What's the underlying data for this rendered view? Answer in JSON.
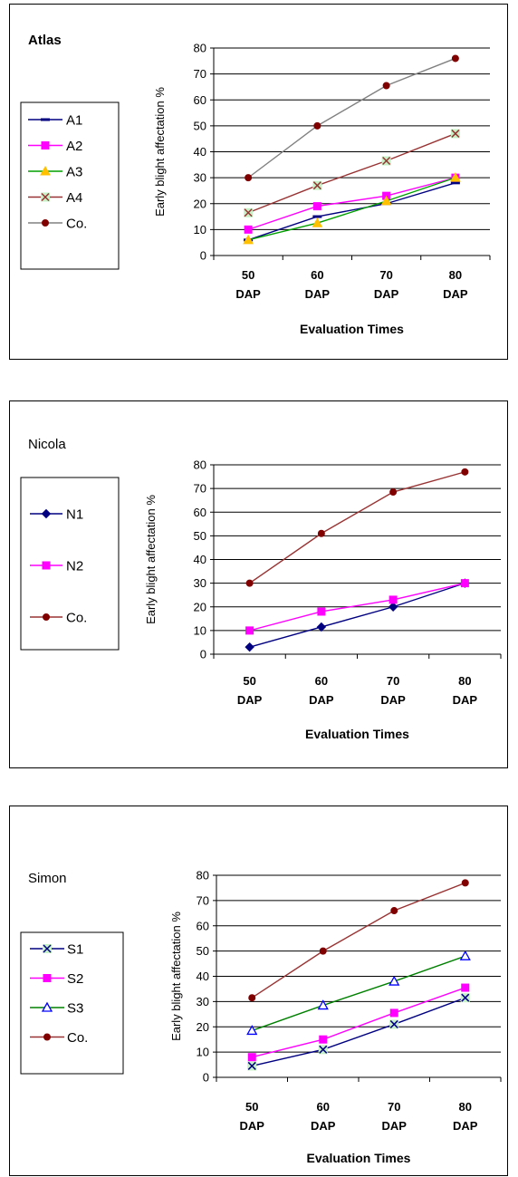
{
  "chart_data": [
    {
      "type": "line",
      "title": "Atlas",
      "categories": [
        "50 DAP",
        "60 DAP",
        "70 DAP",
        "80 DAP"
      ],
      "category_lines": [
        [
          "50",
          "DAP"
        ],
        [
          "60",
          "DAP"
        ],
        [
          "70",
          "DAP"
        ],
        [
          "80",
          "DAP"
        ]
      ],
      "xlabel": "Evaluation Times",
      "ylabel": "Early blight affectation %",
      "ylim": [
        0,
        80
      ],
      "yticks": [
        "0",
        "10",
        "20",
        "30",
        "40",
        "50",
        "60",
        "70",
        "80"
      ],
      "grid": true,
      "legend_position": "left",
      "series": [
        {
          "name": "A1",
          "values": [
            6,
            15,
            20,
            28
          ],
          "color": "#000080",
          "marker": "dash"
        },
        {
          "name": "A2",
          "values": [
            10,
            19,
            23,
            30
          ],
          "color": "#ff00ff",
          "marker": "square"
        },
        {
          "name": "A3",
          "values": [
            6,
            12.5,
            21,
            30
          ],
          "color": "#00a000",
          "marker": "triangle-filled",
          "marker_color": "#ffc000"
        },
        {
          "name": "A4",
          "values": [
            16.5,
            27,
            36.5,
            47
          ],
          "color": "#993333",
          "marker": "x-box"
        },
        {
          "name": "Co.",
          "values": [
            30,
            50,
            65.5,
            76
          ],
          "color": "#808080",
          "marker": "circle",
          "marker_color": "#800000"
        }
      ]
    },
    {
      "type": "line",
      "title": "Nicola",
      "categories": [
        "50 DAP",
        "60 DAP",
        "70 DAP",
        "80 DAP"
      ],
      "category_lines": [
        [
          "50",
          "DAP"
        ],
        [
          "60",
          "DAP"
        ],
        [
          "70",
          "DAP"
        ],
        [
          "80",
          "DAP"
        ]
      ],
      "xlabel": "Evaluation Times",
      "ylabel": "Early blight affectation %",
      "ylim": [
        0,
        80
      ],
      "yticks": [
        "0",
        "10",
        "20",
        "30",
        "40",
        "50",
        "60",
        "70",
        "80"
      ],
      "grid": true,
      "legend_position": "left",
      "series": [
        {
          "name": "N1",
          "values": [
            3,
            11.5,
            20,
            30
          ],
          "color": "#000080",
          "marker": "diamond"
        },
        {
          "name": "N2",
          "values": [
            10,
            18,
            23,
            30
          ],
          "color": "#ff00ff",
          "marker": "square"
        },
        {
          "name": "Co.",
          "values": [
            30,
            51,
            68.5,
            77
          ],
          "color": "#993333",
          "marker": "circle",
          "marker_color": "#800000"
        }
      ]
    },
    {
      "type": "line",
      "title": "Simon",
      "categories": [
        "50 DAP",
        "60 DAP",
        "70 DAP",
        "80 DAP"
      ],
      "category_lines": [
        [
          "50",
          "DAP"
        ],
        [
          "60",
          "DAP"
        ],
        [
          "70",
          "DAP"
        ],
        [
          "80",
          "DAP"
        ]
      ],
      "xlabel": "Evaluation Times",
      "ylabel": "Early blight affectation %",
      "ylim": [
        0,
        80
      ],
      "yticks": [
        "0",
        "10",
        "20",
        "30",
        "40",
        "50",
        "60",
        "70",
        "80"
      ],
      "grid": true,
      "legend_position": "left",
      "series": [
        {
          "name": "S1",
          "values": [
            4.5,
            11,
            21,
            31.5
          ],
          "color": "#000080",
          "marker": "x-box"
        },
        {
          "name": "S2",
          "values": [
            8,
            15,
            25.5,
            35.5
          ],
          "color": "#ff00ff",
          "marker": "square"
        },
        {
          "name": "S3",
          "values": [
            18.5,
            28.5,
            38,
            48
          ],
          "color": "#008000",
          "marker": "triangle-open",
          "marker_color": "#0000ff"
        },
        {
          "name": "Co.",
          "values": [
            31.5,
            50,
            66,
            77
          ],
          "color": "#993333",
          "marker": "circle",
          "marker_color": "#800000"
        }
      ]
    }
  ]
}
